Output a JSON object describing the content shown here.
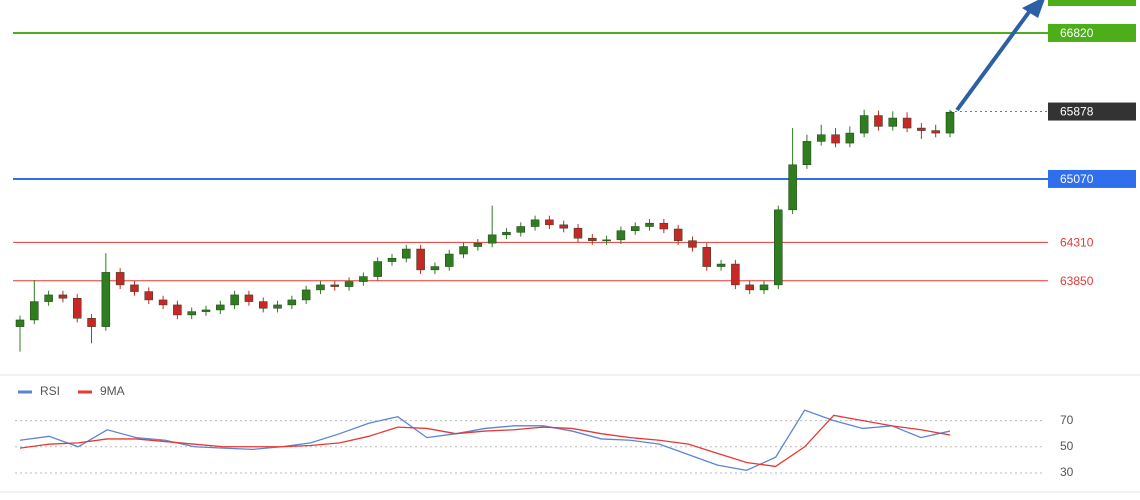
{
  "chart_data": [
    {
      "type": "candlestick",
      "open": [
        63300,
        63380,
        63600,
        63680,
        63640,
        63400,
        63300,
        63950,
        63800,
        63720,
        63620,
        63560,
        63440,
        63480,
        63500,
        63560,
        63680,
        63600,
        63520,
        63560,
        63620,
        63740,
        63800,
        63780,
        63840,
        63900,
        64080,
        64120,
        64230,
        63980,
        64020,
        64170,
        64260,
        64300,
        64400,
        64430,
        64500,
        64580,
        64520,
        64480,
        64360,
        64330,
        64340,
        64450,
        64500,
        64540,
        64470,
        64330,
        64250,
        64020,
        64050,
        63800,
        63740,
        63800,
        64700,
        65240,
        65520,
        65600,
        65500,
        65620,
        65830,
        65700,
        65800,
        65680,
        65650,
        65620
      ],
      "high": [
        63430,
        63860,
        63730,
        63730,
        63690,
        63450,
        64180,
        64000,
        63850,
        63770,
        63670,
        63610,
        63530,
        63550,
        63610,
        63730,
        63730,
        63650,
        63610,
        63670,
        63790,
        63850,
        63850,
        63890,
        63950,
        64130,
        64170,
        64280,
        64280,
        64070,
        64220,
        64310,
        64350,
        64750,
        64480,
        64550,
        64630,
        64630,
        64570,
        64530,
        64410,
        64390,
        64500,
        64550,
        64590,
        64590,
        64520,
        64380,
        64300,
        64100,
        64100,
        63850,
        63850,
        64750,
        65680,
        65600,
        65720,
        65680,
        65700,
        65900,
        65890,
        65880,
        65870,
        65740,
        65720,
        65900
      ],
      "low": [
        63000,
        63330,
        63550,
        63590,
        63350,
        63100,
        63250,
        63750,
        63670,
        63570,
        63510,
        63390,
        63390,
        63430,
        63450,
        63510,
        63550,
        63470,
        63470,
        63510,
        63570,
        63690,
        63730,
        63730,
        63790,
        63850,
        64030,
        64070,
        63930,
        63930,
        63970,
        64120,
        64210,
        64250,
        64350,
        64380,
        64450,
        64470,
        64430,
        64310,
        64280,
        64280,
        64290,
        64400,
        64450,
        64420,
        64280,
        64200,
        63970,
        63970,
        63750,
        63690,
        63690,
        63750,
        64650,
        65190,
        65470,
        65450,
        65450,
        65570,
        65650,
        65650,
        65630,
        65550,
        65570,
        65570
      ],
      "close": [
        63380,
        63600,
        63680,
        63640,
        63400,
        63300,
        63950,
        63800,
        63720,
        63620,
        63560,
        63440,
        63480,
        63500,
        63560,
        63680,
        63600,
        63520,
        63560,
        63620,
        63740,
        63800,
        63780,
        63840,
        63900,
        64080,
        64120,
        64230,
        63980,
        64020,
        64170,
        64260,
        64300,
        64400,
        64430,
        64500,
        64580,
        64520,
        64480,
        64360,
        64330,
        64340,
        64450,
        64500,
        64540,
        64470,
        64330,
        64250,
        64020,
        64050,
        63800,
        63740,
        63800,
        64700,
        65240,
        65520,
        65600,
        65500,
        65620,
        65830,
        65700,
        65800,
        65680,
        65650,
        65620,
        65870
      ],
      "up_color": "#2e7d1f",
      "down_color": "#c62828",
      "ylim": [
        62780,
        67215
      ],
      "levels": [
        {
          "value": 66820,
          "color": "#4caf1a",
          "style": "box"
        },
        {
          "value": 65878,
          "color": "#333333",
          "style": "box"
        },
        {
          "value": 65070,
          "color": "#2f6fed",
          "style": "box"
        },
        {
          "value": 64310,
          "color": "#e53935",
          "style": "text"
        },
        {
          "value": 63850,
          "color": "#e53935",
          "style": "text"
        }
      ]
    },
    {
      "type": "line",
      "series": [
        {
          "name": "RSI",
          "color": "#5b84d6",
          "values": [
            55,
            58,
            50,
            63,
            57,
            55,
            50,
            49,
            48,
            50,
            53,
            60,
            68,
            73,
            57,
            60,
            64,
            66,
            66,
            62,
            56,
            55,
            52,
            44,
            36,
            32,
            42,
            78,
            70,
            64,
            66,
            57,
            62
          ]
        },
        {
          "name": "9MA",
          "color": "#e53935",
          "values": [
            49,
            52,
            53,
            56,
            56,
            54,
            52,
            50,
            50,
            50,
            51,
            53,
            58,
            65,
            64,
            60,
            62,
            63,
            65,
            64,
            60,
            57,
            55,
            52,
            45,
            38,
            35,
            50,
            74,
            70,
            66,
            63,
            59
          ]
        }
      ],
      "ylim": [
        17,
        101
      ],
      "yticks": [
        30,
        50,
        70
      ],
      "grid": true
    }
  ]
}
